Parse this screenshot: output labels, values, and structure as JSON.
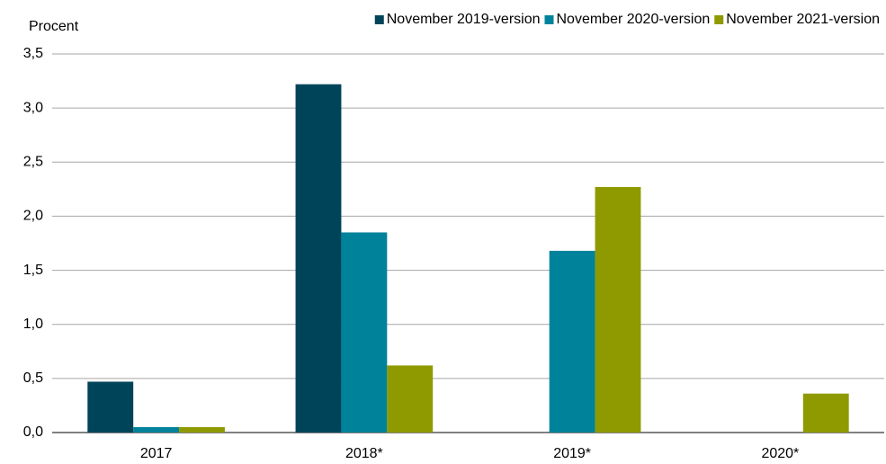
{
  "chart_data": {
    "type": "bar",
    "y_label": "Procent",
    "categories": [
      "2017",
      "2018*",
      "2019*",
      "2020*"
    ],
    "series": [
      {
        "name": "November 2019-version",
        "color": "#00445a",
        "values": [
          0.47,
          3.22,
          null,
          null
        ]
      },
      {
        "name": "November 2020-version",
        "color": "#00829b",
        "values": [
          0.05,
          1.85,
          1.68,
          null
        ]
      },
      {
        "name": "November 2021-version",
        "color": "#8f9a00",
        "values": [
          0.05,
          0.62,
          2.27,
          0.36
        ]
      }
    ],
    "ylim": [
      0,
      3.5
    ],
    "yticks": [
      {
        "value": 0,
        "label": "0,0"
      },
      {
        "value": 0.5,
        "label": "0,5"
      },
      {
        "value": 1,
        "label": "1,0"
      },
      {
        "value": 1.5,
        "label": "1,5"
      },
      {
        "value": 2,
        "label": "2,0"
      },
      {
        "value": 2.5,
        "label": "2,5"
      },
      {
        "value": 3,
        "label": "3,0"
      },
      {
        "value": 3.5,
        "label": "3,5"
      }
    ],
    "grid": true,
    "legend": "top"
  }
}
